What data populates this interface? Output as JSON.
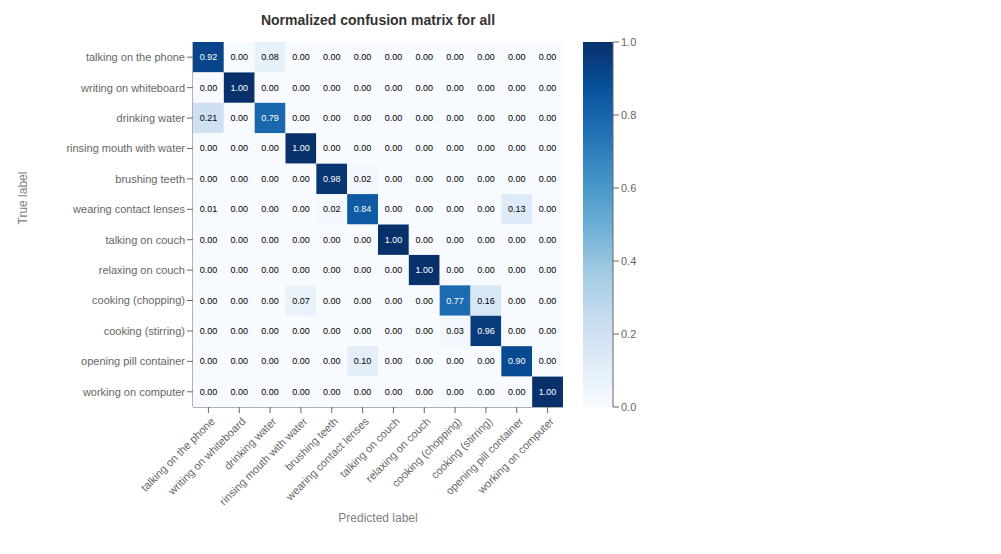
{
  "chart_data": {
    "type": "heatmap",
    "title": "Normalized confusion matrix for all",
    "xlabel": "Predicted label",
    "ylabel": "True label",
    "categories": [
      "talking on the phone",
      "writing on whiteboard",
      "drinking water",
      "rinsing mouth with water",
      "brushing teeth",
      "wearing contact lenses",
      "talking on couch",
      "relaxing on couch",
      "cooking (chopping)",
      "cooking (stirring)",
      "opening pill container",
      "working on computer"
    ],
    "cells": [
      [
        0.92,
        0.0,
        0.08,
        0.0,
        0.0,
        0.0,
        0.0,
        0.0,
        0.0,
        0.0,
        0.0,
        0.0
      ],
      [
        0.0,
        1.0,
        0.0,
        0.0,
        0.0,
        0.0,
        0.0,
        0.0,
        0.0,
        0.0,
        0.0,
        0.0
      ],
      [
        0.21,
        0.0,
        0.79,
        0.0,
        0.0,
        0.0,
        0.0,
        0.0,
        0.0,
        0.0,
        0.0,
        0.0
      ],
      [
        0.0,
        0.0,
        0.0,
        1.0,
        0.0,
        0.0,
        0.0,
        0.0,
        0.0,
        0.0,
        0.0,
        0.0
      ],
      [
        0.0,
        0.0,
        0.0,
        0.0,
        0.98,
        0.02,
        0.0,
        0.0,
        0.0,
        0.0,
        0.0,
        0.0
      ],
      [
        0.01,
        0.0,
        0.0,
        0.0,
        0.02,
        0.84,
        0.0,
        0.0,
        0.0,
        0.0,
        0.13,
        0.0
      ],
      [
        0.0,
        0.0,
        0.0,
        0.0,
        0.0,
        0.0,
        1.0,
        0.0,
        0.0,
        0.0,
        0.0,
        0.0
      ],
      [
        0.0,
        0.0,
        0.0,
        0.0,
        0.0,
        0.0,
        0.0,
        1.0,
        0.0,
        0.0,
        0.0,
        0.0
      ],
      [
        0.0,
        0.0,
        0.0,
        0.07,
        0.0,
        0.0,
        0.0,
        0.0,
        0.77,
        0.16,
        0.0,
        0.0
      ],
      [
        0.0,
        0.0,
        0.0,
        0.0,
        0.0,
        0.0,
        0.0,
        0.0,
        0.03,
        0.96,
        0.0,
        0.0
      ],
      [
        0.0,
        0.0,
        0.0,
        0.0,
        0.0,
        0.1,
        0.0,
        0.0,
        0.0,
        0.0,
        0.9,
        0.0
      ],
      [
        0.0,
        0.0,
        0.0,
        0.0,
        0.0,
        0.0,
        0.0,
        0.0,
        0.0,
        0.0,
        0.0,
        1.0
      ]
    ],
    "cell_labels": [
      [
        "0.92",
        "0.00",
        "0.08",
        "0.00",
        "0.00",
        "0.00",
        "0.00",
        "0.00",
        "0.00",
        "0.00",
        "0.00",
        "0.00"
      ],
      [
        "0.00",
        "1.00",
        "0.00",
        "0.00",
        "0.00",
        "0.00",
        "0.00",
        "0.00",
        "0.00",
        "0.00",
        "0.00",
        "0.00"
      ],
      [
        "0.21",
        "0.00",
        "0.79",
        "0.00",
        "0.00",
        "0.00",
        "0.00",
        "0.00",
        "0.00",
        "0.00",
        "0.00",
        "0.00"
      ],
      [
        "0.00",
        "0.00",
        "0.00",
        "1.00",
        "0.00",
        "0.00",
        "0.00",
        "0.00",
        "0.00",
        "0.00",
        "0.00",
        "0.00"
      ],
      [
        "0.00",
        "0.00",
        "0.00",
        "0.00",
        "0.98",
        "0.02",
        "0.00",
        "0.00",
        "0.00",
        "0.00",
        "0.00",
        "0.00"
      ],
      [
        "0.01",
        "0.00",
        "0.00",
        "0.00",
        "0.02",
        "0.84",
        "0.00",
        "0.00",
        "0.00",
        "0.00",
        "0.13",
        "0.00"
      ],
      [
        "0.00",
        "0.00",
        "0.00",
        "0.00",
        "0.00",
        "0.00",
        "1.00",
        "0.00",
        "0.00",
        "0.00",
        "0.00",
        "0.00"
      ],
      [
        "0.00",
        "0.00",
        "0.00",
        "0.00",
        "0.00",
        "0.00",
        "0.00",
        "1.00",
        "0.00",
        "0.00",
        "0.00",
        "0.00"
      ],
      [
        "0.00",
        "0.00",
        "0.00",
        "0.07",
        "0.00",
        "0.00",
        "0.00",
        "0.00",
        "0.77",
        "0.16",
        "0.00",
        "0.00"
      ],
      [
        "0.00",
        "0.00",
        "0.00",
        "0.00",
        "0.00",
        "0.00",
        "0.00",
        "0.00",
        "0.03",
        "0.96",
        "0.00",
        "0.00"
      ],
      [
        "0.00",
        "0.00",
        "0.00",
        "0.00",
        "0.00",
        "0.10",
        "0.00",
        "0.00",
        "0.00",
        "0.00",
        "0.90",
        "0.00"
      ],
      [
        "0.00",
        "0.00",
        "0.00",
        "0.00",
        "0.00",
        "0.00",
        "0.00",
        "0.00",
        "0.00",
        "0.00",
        "0.00",
        "1.00"
      ]
    ],
    "data_labels": true,
    "grid": false,
    "color": "Blues",
    "colorbar_range": [
      0.0,
      1.0
    ],
    "colorbar_ticks": [
      {
        "value": 0.0,
        "label": "0.0"
      },
      0.2,
      0.4,
      0.6,
      0.8,
      {
        "value": 1.0,
        "label": "1.0"
      }
    ]
  }
}
